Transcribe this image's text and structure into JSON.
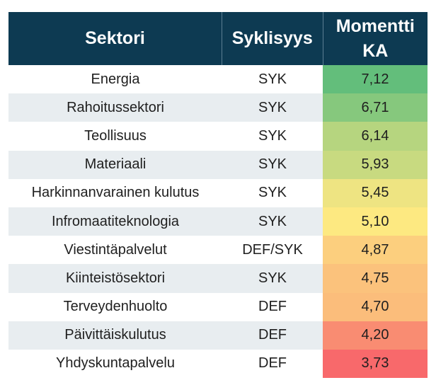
{
  "chart_data": {
    "type": "table",
    "columns": [
      "Sektori",
      "Syklisyys",
      "Momentti KA"
    ],
    "header": {
      "col1": "Sektori",
      "col2": "Syklisyys",
      "col3_line1": "Momentti",
      "col3_line2": "KA"
    },
    "rows": [
      {
        "sektori": "Energia",
        "syklisyys": "SYK",
        "momentti": "7,12",
        "color": "#63be7b"
      },
      {
        "sektori": "Rahoitussektori",
        "syklisyys": "SYK",
        "momentti": "6,71",
        "color": "#86c87d"
      },
      {
        "sektori": "Teollisuus",
        "syklisyys": "SYK",
        "momentti": "6,14",
        "color": "#b6d57f"
      },
      {
        "sektori": "Materiaali",
        "syklisyys": "SYK",
        "momentti": "5,93",
        "color": "#c8da80"
      },
      {
        "sektori": "Harkinnanvarainen kulutus",
        "syklisyys": "SYK",
        "momentti": "5,45",
        "color": "#eee482"
      },
      {
        "sektori": "Infromaatiteknologia",
        "syklisyys": "SYK",
        "momentti": "5,10",
        "color": "#fde981"
      },
      {
        "sektori": "Viestintäpalvelut",
        "syklisyys": "DEF/SYK",
        "momentti": "4,87",
        "color": "#fccf7e"
      },
      {
        "sektori": "Kiinteistösektori",
        "syklisyys": "SYK",
        "momentti": "4,75",
        "color": "#fbc27c"
      },
      {
        "sektori": "Terveydenhuolto",
        "syklisyys": "DEF",
        "momentti": "4,70",
        "color": "#fbbd7b"
      },
      {
        "sektori": "Päivittäiskulutus",
        "syklisyys": "DEF",
        "momentti": "4,20",
        "color": "#f98c72"
      },
      {
        "sektori": "Yhdyskuntapalvelu",
        "syklisyys": "DEF",
        "momentti": "3,73",
        "color": "#f8696b"
      }
    ]
  }
}
